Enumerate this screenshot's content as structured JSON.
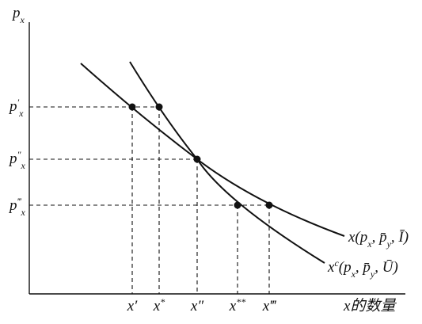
{
  "axes": {
    "y_label": [
      {
        "text": "p"
      },
      {
        "text": "x",
        "pos": "sub"
      }
    ],
    "x_label": [
      {
        "text": "x"
      },
      {
        "text": "的数量"
      }
    ]
  },
  "price_levels": [
    [
      {
        "text": "p"
      },
      {
        "text": "′",
        "pos": "super"
      },
      {
        "text": "x",
        "pos": "sub"
      }
    ],
    [
      {
        "text": "p"
      },
      {
        "text": "″",
        "pos": "super"
      },
      {
        "text": "x",
        "pos": "sub"
      }
    ],
    [
      {
        "text": "p"
      },
      {
        "text": "‴",
        "pos": "super"
      },
      {
        "text": "x",
        "pos": "sub"
      }
    ]
  ],
  "quantities": [
    [
      {
        "text": "x′"
      }
    ],
    [
      {
        "text": "x"
      },
      {
        "text": "*",
        "pos": "super"
      }
    ],
    [
      {
        "text": "x″"
      }
    ],
    [
      {
        "text": "x"
      },
      {
        "text": "**",
        "pos": "super"
      }
    ],
    [
      {
        "text": "x‴"
      }
    ]
  ],
  "curves": [
    [
      {
        "text": "x(p"
      },
      {
        "text": "x",
        "pos": "sub"
      },
      {
        "text": ", p̄"
      },
      {
        "text": "y",
        "pos": "sub"
      },
      {
        "text": ", Ī)"
      }
    ],
    [
      {
        "text": "x"
      },
      {
        "text": "c",
        "pos": "super"
      },
      {
        "text": "(p"
      },
      {
        "text": "x",
        "pos": "sub"
      },
      {
        "text": ", p̄"
      },
      {
        "text": "y",
        "pos": "sub"
      },
      {
        "text": ", Ū)"
      }
    ]
  ]
}
